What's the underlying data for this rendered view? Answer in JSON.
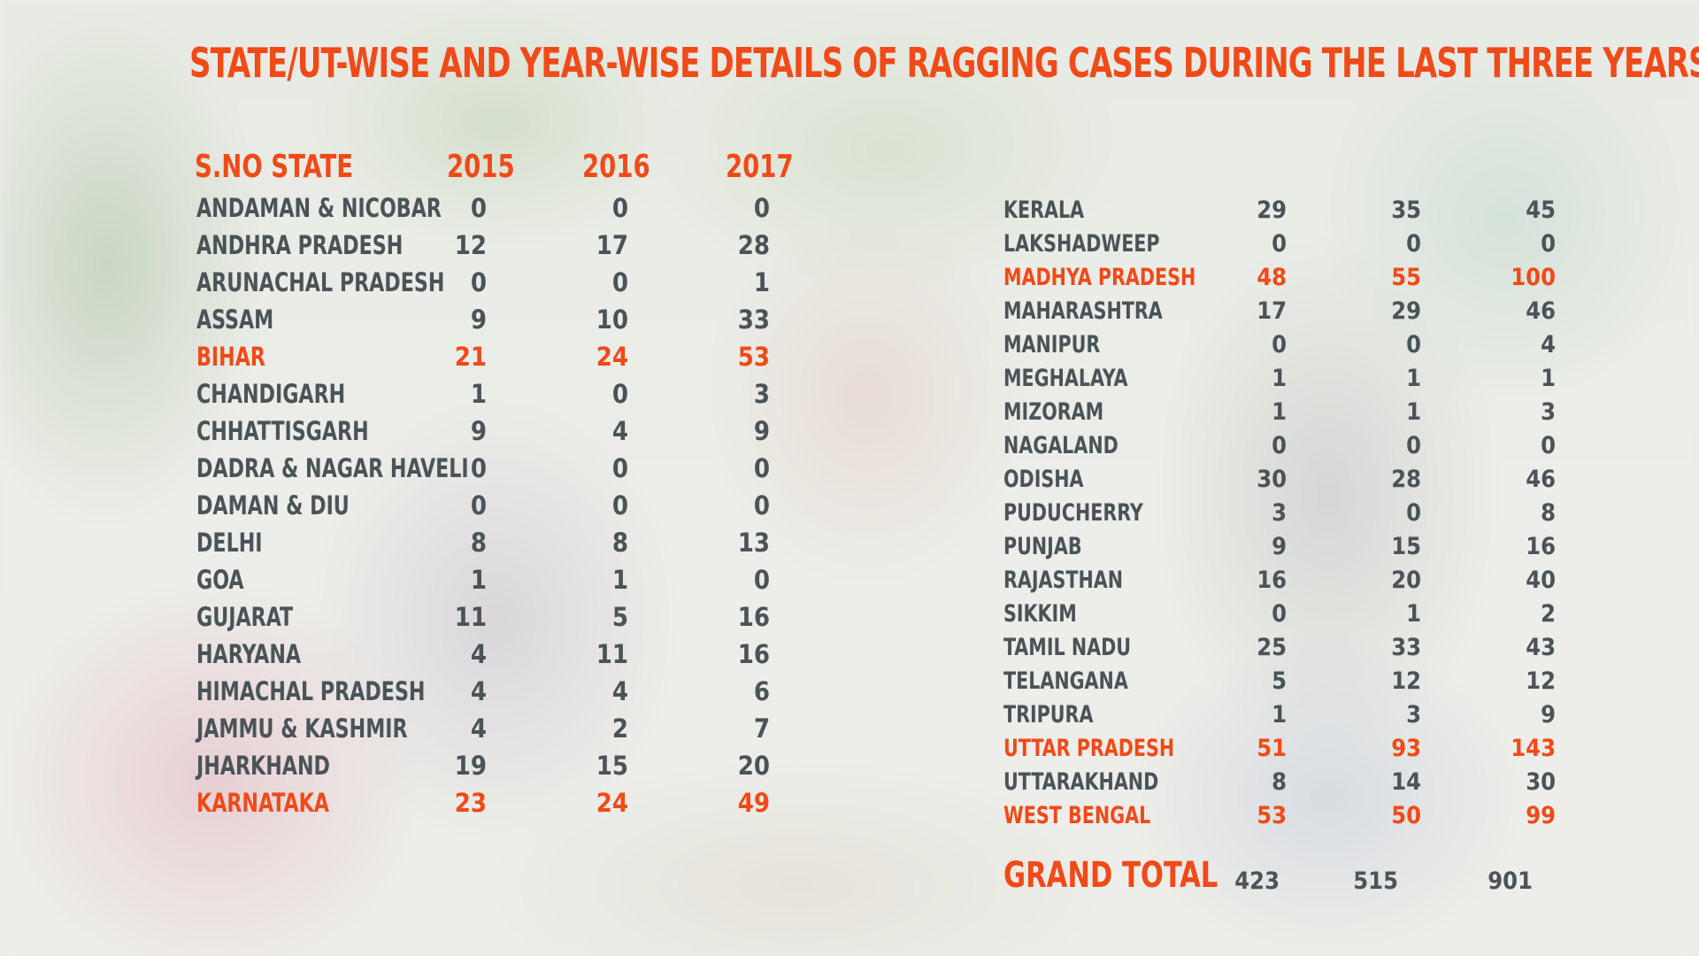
{
  "title": "STATE/UT-WISE AND YEAR-WISE DETAILS OF RAGGING CASES DURING THE LAST THREE YEARS",
  "header": {
    "sno_state": "S.NO STATE",
    "y2015": "2015",
    "y2016": "2016",
    "y2017": "2017"
  },
  "left_rows": [
    {
      "state": "ANDAMAN & NICOBAR",
      "y2015": "0",
      "y2016": "0",
      "y2017": "0",
      "highlight": false
    },
    {
      "state": "ANDHRA PRADESH",
      "y2015": "12",
      "y2016": "17",
      "y2017": "28",
      "highlight": false
    },
    {
      "state": "ARUNACHAL PRADESH",
      "y2015": "0",
      "y2016": "0",
      "y2017": "1",
      "highlight": false
    },
    {
      "state": "ASSAM",
      "y2015": "9",
      "y2016": "10",
      "y2017": "33",
      "highlight": false
    },
    {
      "state": "BIHAR",
      "y2015": "21",
      "y2016": "24",
      "y2017": "53",
      "highlight": true
    },
    {
      "state": "CHANDIGARH",
      "y2015": "1",
      "y2016": "0",
      "y2017": "3",
      "highlight": false
    },
    {
      "state": "CHHATTISGARH",
      "y2015": "9",
      "y2016": "4",
      "y2017": "9",
      "highlight": false
    },
    {
      "state": "DADRA & NAGAR HAVELI",
      "y2015": "0",
      "y2016": "0",
      "y2017": "0",
      "highlight": false
    },
    {
      "state": "DAMAN & DIU",
      "y2015": "0",
      "y2016": "0",
      "y2017": "0",
      "highlight": false
    },
    {
      "state": "DELHI",
      "y2015": "8",
      "y2016": "8",
      "y2017": "13",
      "highlight": false
    },
    {
      "state": "GOA",
      "y2015": "1",
      "y2016": "1",
      "y2017": "0",
      "highlight": false
    },
    {
      "state": "GUJARAT",
      "y2015": "11",
      "y2016": "5",
      "y2017": "16",
      "highlight": false
    },
    {
      "state": "HARYANA",
      "y2015": "4",
      "y2016": "11",
      "y2017": "16",
      "highlight": false
    },
    {
      "state": "HIMACHAL PRADESH",
      "y2015": "4",
      "y2016": "4",
      "y2017": "6",
      "highlight": false
    },
    {
      "state": "JAMMU & KASHMIR",
      "y2015": "4",
      "y2016": "2",
      "y2017": "7",
      "highlight": false
    },
    {
      "state": "JHARKHAND",
      "y2015": "19",
      "y2016": "15",
      "y2017": "20",
      "highlight": false
    },
    {
      "state": "KARNATAKA",
      "y2015": "23",
      "y2016": "24",
      "y2017": "49",
      "highlight": true
    }
  ],
  "right_rows": [
    {
      "state": "KERALA",
      "y2015": "29",
      "y2016": "35",
      "y2017": "45",
      "highlight": false
    },
    {
      "state": "LAKSHADWEEP",
      "y2015": "0",
      "y2016": "0",
      "y2017": "0",
      "highlight": false
    },
    {
      "state": "MADHYA PRADESH",
      "y2015": "48",
      "y2016": "55",
      "y2017": "100",
      "highlight": true
    },
    {
      "state": "MAHARASHTRA",
      "y2015": "17",
      "y2016": "29",
      "y2017": "46",
      "highlight": false
    },
    {
      "state": "MANIPUR",
      "y2015": "0",
      "y2016": "0",
      "y2017": "4",
      "highlight": false
    },
    {
      "state": "MEGHALAYA",
      "y2015": "1",
      "y2016": "1",
      "y2017": "1",
      "highlight": false
    },
    {
      "state": "MIZORAM",
      "y2015": "1",
      "y2016": "1",
      "y2017": "3",
      "highlight": false
    },
    {
      "state": "NAGALAND",
      "y2015": "0",
      "y2016": "0",
      "y2017": "0",
      "highlight": false
    },
    {
      "state": "ODISHA",
      "y2015": "30",
      "y2016": "28",
      "y2017": "46",
      "highlight": false
    },
    {
      "state": "PUDUCHERRY",
      "y2015": "3",
      "y2016": "0",
      "y2017": "8",
      "highlight": false
    },
    {
      "state": "PUNJAB",
      "y2015": "9",
      "y2016": "15",
      "y2017": "16",
      "highlight": false
    },
    {
      "state": "RAJASTHAN",
      "y2015": "16",
      "y2016": "20",
      "y2017": "40",
      "highlight": false
    },
    {
      "state": "SIKKIM",
      "y2015": "0",
      "y2016": "1",
      "y2017": "2",
      "highlight": false
    },
    {
      "state": "TAMIL NADU",
      "y2015": "25",
      "y2016": "33",
      "y2017": "43",
      "highlight": false
    },
    {
      "state": "TELANGANA",
      "y2015": "5",
      "y2016": "12",
      "y2017": "12",
      "highlight": false
    },
    {
      "state": "TRIPURA",
      "y2015": "1",
      "y2016": "3",
      "y2017": "9",
      "highlight": false
    },
    {
      "state": "UTTAR PRADESH",
      "y2015": "51",
      "y2016": "93",
      "y2017": "143",
      "highlight": true
    },
    {
      "state": "UTTARAKHAND",
      "y2015": "8",
      "y2016": "14",
      "y2017": "30",
      "highlight": false
    },
    {
      "state": "WEST BENGAL",
      "y2015": "53",
      "y2016": "50",
      "y2017": "99",
      "highlight": true
    }
  ],
  "grand_total": {
    "label": "GRAND TOTAL",
    "y2015": "423",
    "y2016": "515",
    "y2017": "901"
  },
  "colors": {
    "accent": "#f04a18",
    "text": "#4a5458"
  }
}
